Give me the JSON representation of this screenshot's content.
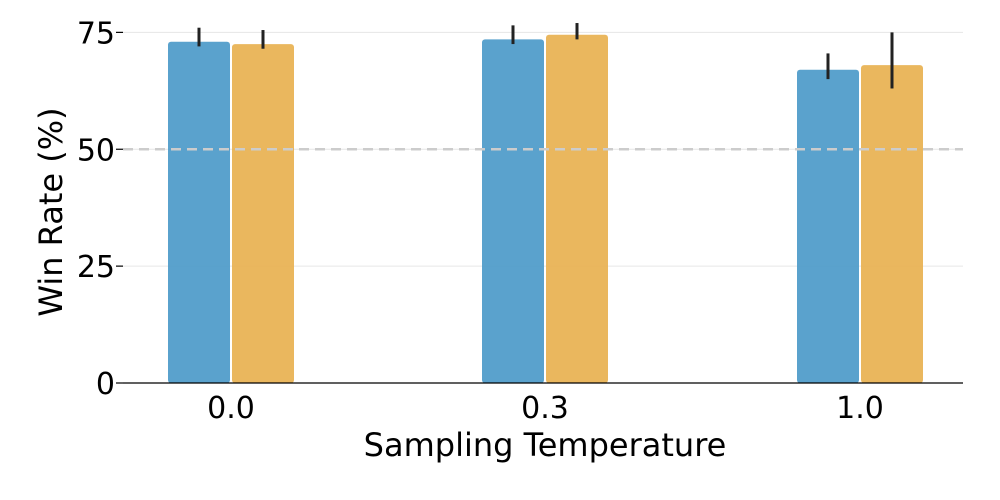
{
  "chart_data": {
    "type": "bar",
    "xlabel": "Sampling Temperature",
    "ylabel": "Win Rate (%)",
    "categories": [
      "0.0",
      "0.3",
      "1.0"
    ],
    "ylim": [
      0,
      80
    ],
    "yticks": [
      0,
      25,
      50,
      75
    ],
    "grid": true,
    "reference_line": 50,
    "series": [
      {
        "color": "#4c9ac9",
        "values": [
          73,
          73.5,
          67
        ],
        "err_low": [
          72,
          72.5,
          65
        ],
        "err_high": [
          76,
          76.5,
          70.5
        ]
      },
      {
        "color": "#e8b150",
        "values": [
          72.5,
          74.5,
          68
        ],
        "err_low": [
          71.5,
          73.5,
          63
        ],
        "err_high": [
          75.5,
          77,
          75
        ]
      }
    ]
  }
}
